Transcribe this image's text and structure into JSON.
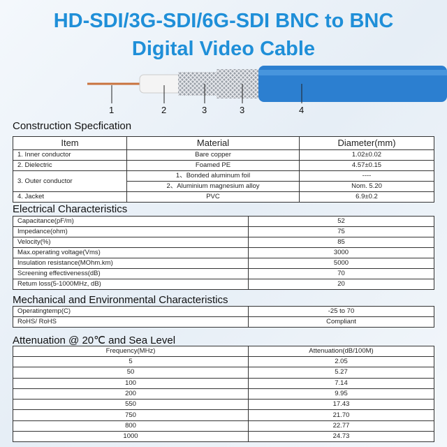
{
  "title": {
    "line1": "HD-SDI/3G-SDI/6G-SDI BNC to BNC",
    "line2": "Digital Video Cable"
  },
  "diagram": {
    "labels": [
      "1",
      "2",
      "3",
      "3",
      "4"
    ],
    "colors": {
      "copper": "#c9733e",
      "dielectric": "#f4f4f4",
      "braid": "#b8bcc2",
      "jacket": "#2c7fd0"
    }
  },
  "construction": {
    "heading": "Construction Specfication",
    "headers": [
      "Item",
      "Material",
      "Diameter(mm)"
    ],
    "rows": [
      [
        "1. Inner conductor",
        "Bare copper",
        "1.02±0.02"
      ],
      [
        "2. Dielectric",
        "Foamed PE",
        "4.57±0.15"
      ],
      [
        "3. Outer conductor",
        "1、Bonded aluminum foil",
        "----"
      ],
      [
        "",
        "2、Aluminium magnesium alloy",
        "Nom. 5.20"
      ],
      [
        "4. Jacket",
        "PVC",
        "6.9±0.2"
      ]
    ]
  },
  "electrical": {
    "heading": "Electrical Characteristics",
    "rows": [
      [
        "Capacitance(pF/m)",
        "52"
      ],
      [
        "Impedance(ohm)",
        "75"
      ],
      [
        "Velocity(%)",
        "85"
      ],
      [
        "Max.operating voltage(Vms)",
        "3000"
      ],
      [
        "Insulation resistance(MOhm.km)",
        "5000"
      ],
      [
        "Screening effectiveness(dB)",
        "70"
      ],
      [
        "Retum loss(5-1000MHz, dB)",
        "20"
      ]
    ]
  },
  "mechanical": {
    "heading": "Mechanical and Environmental Characteristics",
    "rows": [
      [
        "Operatingtemp(C)",
        "-25 to 70"
      ],
      [
        "RoHS/ RoHS",
        "Compliant"
      ]
    ]
  },
  "attenuation": {
    "heading": "Attenuation @ 20℃ and Sea Level",
    "headers": [
      "Frequency(MHz)",
      "Attenuation(dB/100M)"
    ],
    "rows": [
      [
        "5",
        "2.05"
      ],
      [
        "50",
        "5.27"
      ],
      [
        "100",
        "7.14"
      ],
      [
        "200",
        "9.95"
      ],
      [
        "550",
        "17.43"
      ],
      [
        "750",
        "21.70"
      ],
      [
        "800",
        "22.77"
      ],
      [
        "1000",
        "24.73"
      ]
    ]
  }
}
